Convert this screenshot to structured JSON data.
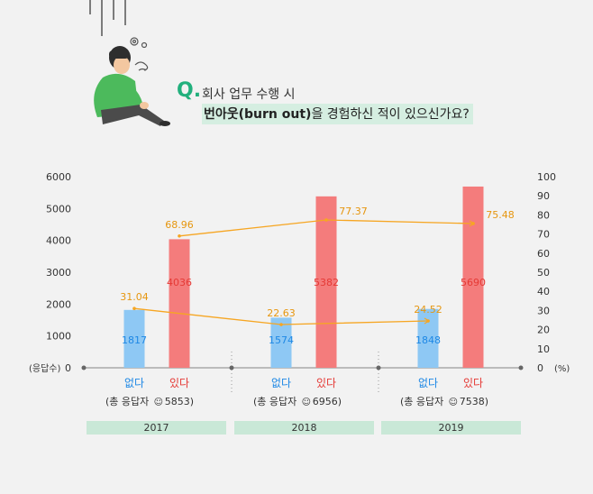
{
  "question": {
    "mark": "Q.",
    "line1": "회사 업무 수행 시",
    "line2_bold": "번아웃(burn out)",
    "line2_rest": "을 경험하신 적이 있으신가요?"
  },
  "colors": {
    "no_bar": "#8ec8f4",
    "yes_bar": "#f47c7c",
    "no_text": "#1e88e5",
    "yes_text": "#e53935",
    "line": "#f6a623",
    "pct_text": "#e6960f",
    "year_band": "#c9e8d7",
    "q_mark": "#22b07d"
  },
  "chart_data": {
    "type": "bar",
    "left_axis_label": "(응답수)",
    "right_axis_label": "(%)",
    "ylim": [
      0,
      6000
    ],
    "y_ticks": [
      0,
      1000,
      2000,
      3000,
      4000,
      5000,
      6000
    ],
    "y2lim": [
      0,
      100
    ],
    "y2_ticks": [
      0,
      10,
      20,
      30,
      40,
      50,
      60,
      70,
      80,
      90,
      100
    ],
    "categories": [
      "없다",
      "있다"
    ],
    "groups": [
      {
        "year": "2017",
        "total_label": "(총 응답자",
        "total": "5853)",
        "no": 1817,
        "yes": 4036,
        "no_pct": 31.04,
        "yes_pct": 68.96
      },
      {
        "year": "2018",
        "total_label": "(총 응답자",
        "total": "6956)",
        "no": 1574,
        "yes": 5382,
        "no_pct": 22.63,
        "yes_pct": 77.37
      },
      {
        "year": "2019",
        "total_label": "(총 응답자",
        "total": "7538)",
        "no": 1848,
        "yes": 5690,
        "no_pct": 24.52,
        "yes_pct": 75.48
      }
    ],
    "grid": false
  }
}
